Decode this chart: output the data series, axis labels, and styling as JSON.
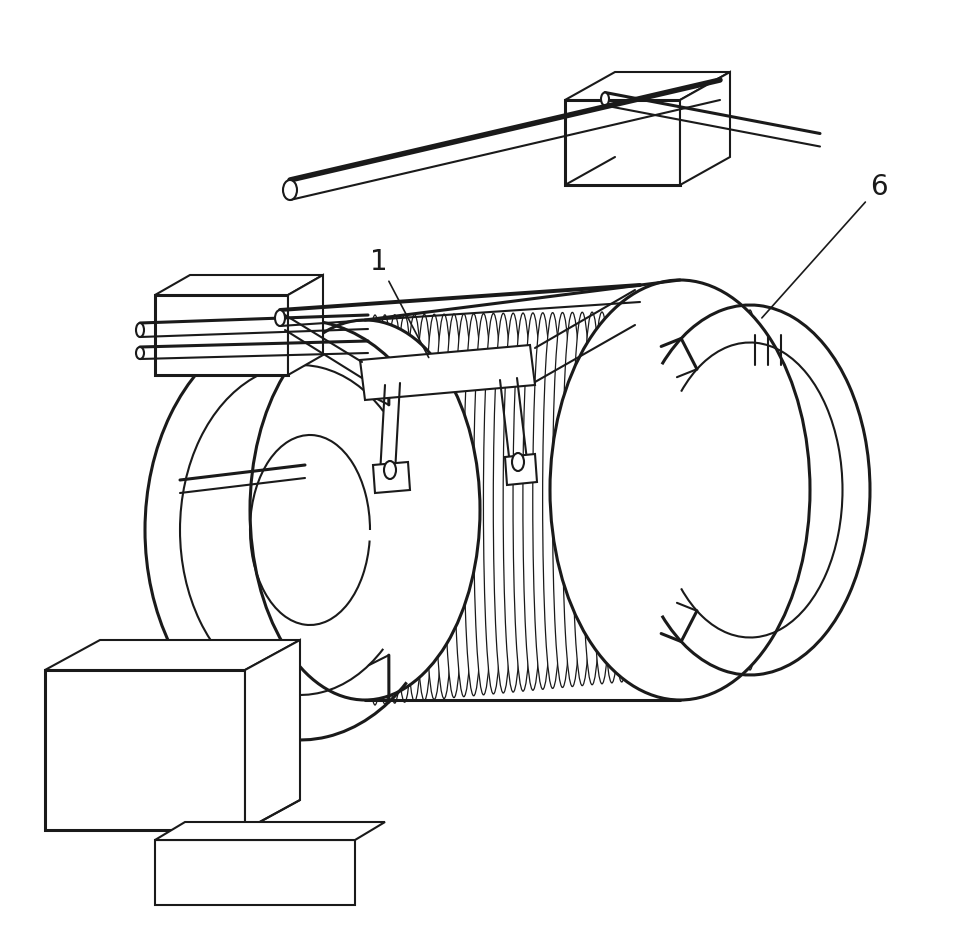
{
  "background_color": "#ffffff",
  "line_color": "#1a1a1a",
  "figure_width": 9.63,
  "figure_height": 9.43,
  "label_1": "1",
  "label_6": "6",
  "label_fontsize": 20
}
